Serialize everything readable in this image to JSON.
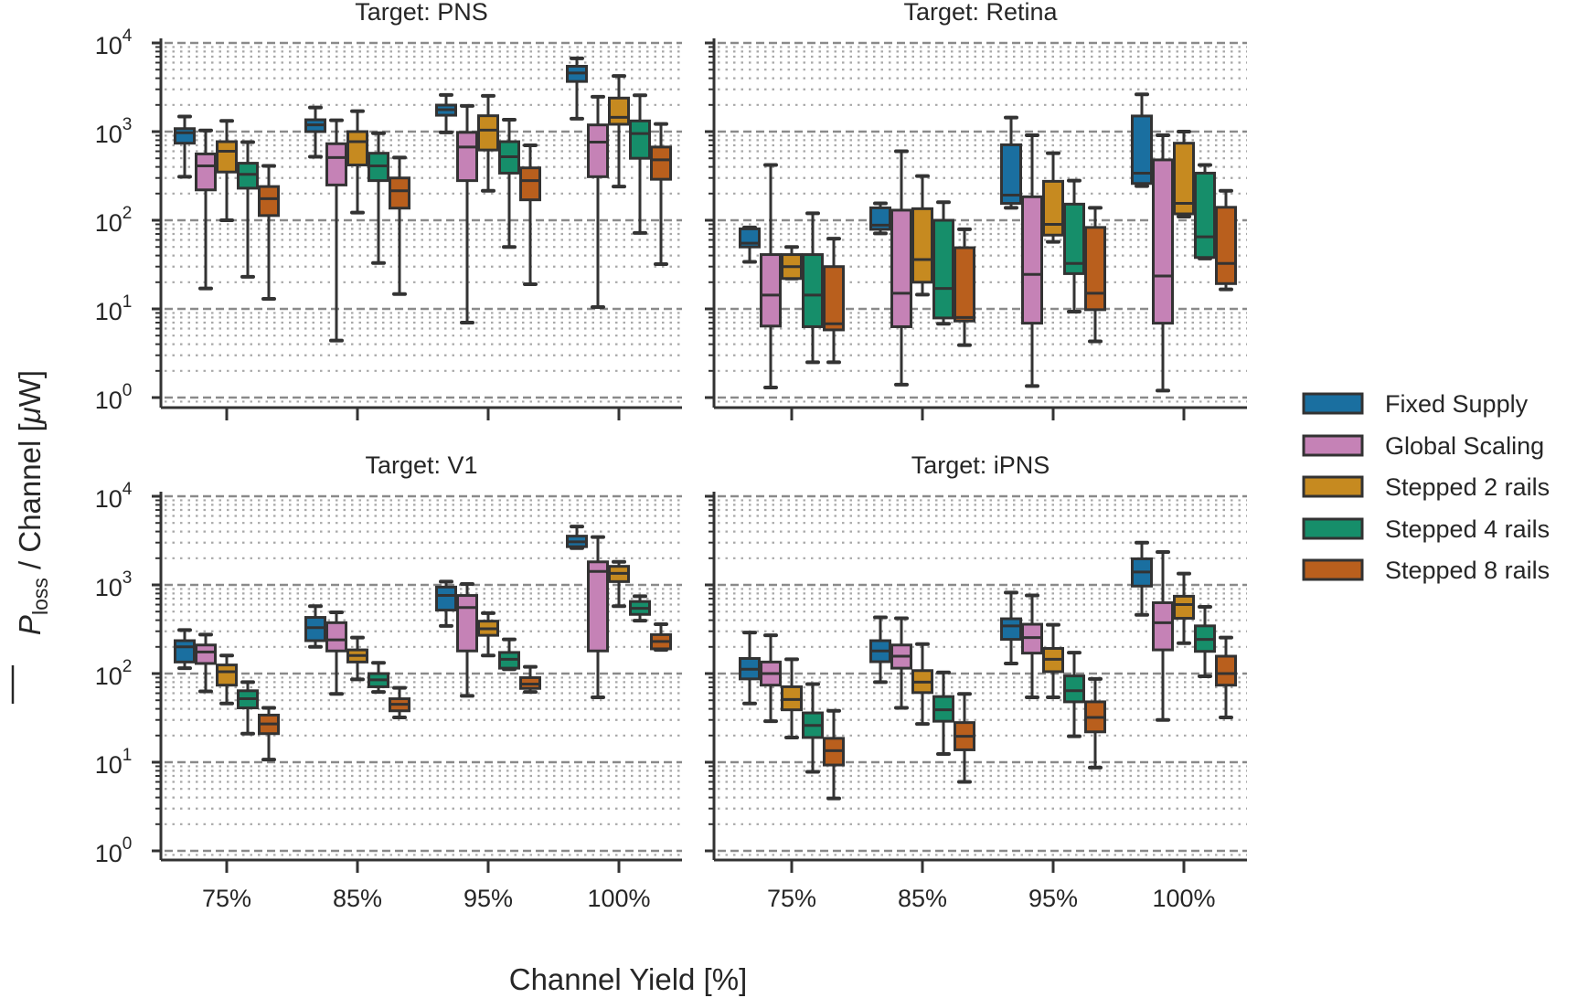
{
  "figure": {
    "xlabel": "Channel Yield [%]",
    "ylabel": {
      "symbol": "P",
      "subscript": "loss",
      "middle": " / Channel [",
      "unit_prefix": "μ",
      "unit_rest": "W]"
    },
    "yscale": "log",
    "ylim": [
      1,
      10000
    ],
    "yticks": [
      1,
      10,
      100,
      1000,
      10000
    ],
    "grid": {
      "major": "dashed",
      "minor": "dotted"
    },
    "legend_position": "right"
  },
  "legend": [
    {
      "label": "Fixed Supply",
      "color": "#1a6fa0"
    },
    {
      "label": "Global Scaling",
      "color": "#c582b6"
    },
    {
      "label": "Stepped 2 rails",
      "color": "#c68a20"
    },
    {
      "label": "Stepped 4 rails",
      "color": "#168e6a"
    },
    {
      "label": "Stepped 8 rails",
      "color": "#b95f1d"
    }
  ],
  "chart_data": [
    {
      "type": "box",
      "title": "Target: PNS",
      "categories": [
        "75%",
        "85%",
        "95%",
        "100%"
      ],
      "box_format": [
        "whisker_low",
        "q1",
        "median",
        "q3",
        "whisker_high"
      ],
      "series": [
        {
          "name": "Fixed Supply",
          "boxes": [
            [
              310,
              740,
              970,
              1080,
              1480
            ],
            [
              520,
              1000,
              1190,
              1360,
              1870
            ],
            [
              980,
              1530,
              1770,
              1990,
              2590
            ],
            [
              1400,
              3680,
              4580,
              5460,
              6700
            ]
          ]
        },
        {
          "name": "Global Scaling",
          "boxes": [
            [
              17,
              220,
              410,
              560,
              1030
            ],
            [
              4.4,
              250,
              510,
              730,
              1340
            ],
            [
              7,
              280,
              670,
              980,
              1950
            ],
            [
              10.5,
              310,
              760,
              1190,
              2470
            ]
          ]
        },
        {
          "name": "Stepped 2 rails",
          "boxes": [
            [
              100,
              350,
              600,
              770,
              1320
            ],
            [
              122,
              420,
              770,
              1000,
              1700
            ],
            [
              215,
              620,
              1040,
              1510,
              2530
            ],
            [
              240,
              1210,
              1450,
              2390,
              4240
            ]
          ]
        },
        {
          "name": "Stepped 4 rails",
          "boxes": [
            [
              23,
              230,
              330,
              440,
              760
            ],
            [
              33,
              280,
              410,
              570,
              960
            ],
            [
              50,
              340,
              520,
              770,
              1360
            ],
            [
              72,
              500,
              950,
              1320,
              2570
            ]
          ]
        },
        {
          "name": "Stepped 8 rails",
          "boxes": [
            [
              13,
              113,
              175,
              240,
              410
            ],
            [
              14.7,
              137,
              215,
              300,
              510
            ],
            [
              19,
              170,
              280,
              390,
              700
            ],
            [
              32,
              290,
              480,
              670,
              1220
            ]
          ]
        }
      ]
    },
    {
      "type": "box",
      "title": "Target: Retina",
      "categories": [
        "75%",
        "85%",
        "95%",
        "100%"
      ],
      "box_format": [
        "whisker_low",
        "q1",
        "median",
        "q3",
        "whisker_high"
      ],
      "series": [
        {
          "name": "Fixed Supply",
          "boxes": [
            [
              34,
              50,
              55,
              80,
              83
            ],
            [
              71,
              79,
              88,
              138,
              155
            ],
            [
              138,
              155,
              192,
              710,
              1440
            ],
            [
              243,
              260,
              340,
              1500,
              2630
            ]
          ]
        },
        {
          "name": "Global Scaling",
          "boxes": [
            [
              1.3,
              6.4,
              14.3,
              41,
              420
            ],
            [
              1.4,
              6.3,
              15,
              130,
              600
            ],
            [
              1.35,
              6.9,
              24.5,
              184,
              910
            ],
            [
              1.2,
              6.9,
              23.5,
              480,
              910
            ]
          ]
        },
        {
          "name": "Stepped 2 rails",
          "boxes": [
            [
              22,
              22,
              30,
              41,
              50
            ],
            [
              14.5,
              20,
              36,
              135,
              315
            ],
            [
              57,
              68,
              90,
              275,
              570
            ],
            [
              110,
              118,
              155,
              740,
              1000
            ]
          ]
        },
        {
          "name": "Stepped 4 rails",
          "boxes": [
            [
              2.5,
              6.3,
              14.3,
              41,
              120
            ],
            [
              6.8,
              7.9,
              17,
              100,
              160
            ],
            [
              9.3,
              25,
              32.6,
              152,
              280
            ],
            [
              37,
              38,
              65,
              340,
              420
            ]
          ]
        },
        {
          "name": "Stepped 8 rails",
          "boxes": [
            [
              2.5,
              5.8,
              6.8,
              30,
              62
            ],
            [
              3.9,
              7.3,
              8,
              49,
              79
            ],
            [
              4.3,
              9.8,
              15,
              83,
              138
            ],
            [
              16.6,
              19.3,
              32.6,
              140,
              215
            ]
          ]
        }
      ]
    },
    {
      "type": "box",
      "title": "Target: V1",
      "categories": [
        "75%",
        "85%",
        "95%",
        "100%"
      ],
      "box_format": [
        "whisker_low",
        "q1",
        "median",
        "q3",
        "whisker_high"
      ],
      "series": [
        {
          "name": "Fixed Supply",
          "boxes": [
            [
              115,
              135,
              200,
              235,
              310
            ],
            [
              200,
              235,
              330,
              430,
              575
            ],
            [
              345,
              520,
              760,
              945,
              1090
            ],
            [
              2600,
              2700,
              3060,
              3550,
              4550
            ]
          ]
        },
        {
          "name": "Global Scaling",
          "boxes": [
            [
              63,
              130,
              175,
              210,
              275
            ],
            [
              59,
              180,
              240,
              375,
              490
            ],
            [
              56,
              180,
              555,
              760,
              1025
            ],
            [
              54,
              180,
              1420,
              1820,
              3470
            ]
          ]
        },
        {
          "name": "Stepped 2 rails",
          "boxes": [
            [
              46,
              74,
              105,
              125,
              160
            ],
            [
              86,
              135,
              160,
              185,
              255
            ],
            [
              160,
              270,
              320,
              390,
              480
            ],
            [
              575,
              1090,
              1350,
              1620,
              1820
            ]
          ]
        },
        {
          "name": "Stepped 4 rails",
          "boxes": [
            [
              21,
              41,
              52,
              64,
              80
            ],
            [
              62,
              71,
              85,
              100,
              132
            ],
            [
              112,
              115,
              145,
              173,
              243
            ],
            [
              395,
              465,
              545,
              650,
              745
            ]
          ]
        },
        {
          "name": "Stepped 8 rails",
          "boxes": [
            [
              10.7,
              21,
              27,
              34,
              41
            ],
            [
              32,
              38,
              45,
              52,
              69
            ],
            [
              62,
              68,
              76,
              90,
              119
            ],
            [
              185,
              190,
              230,
              275,
              360
            ]
          ]
        }
      ]
    },
    {
      "type": "box",
      "title": "Target: iPNS",
      "categories": [
        "75%",
        "85%",
        "95%",
        "100%"
      ],
      "box_format": [
        "whisker_low",
        "q1",
        "median",
        "q3",
        "whisker_high"
      ],
      "series": [
        {
          "name": "Fixed Supply",
          "boxes": [
            [
              46,
              87,
              112,
              148,
              290
            ],
            [
              80,
              136,
              180,
              235,
              430
            ],
            [
              130,
              243,
              345,
              415,
              820
            ],
            [
              460,
              970,
              1400,
              1970,
              3000
            ]
          ]
        },
        {
          "name": "Global Scaling",
          "boxes": [
            [
              29,
              74,
              100,
              135,
              270
            ],
            [
              41,
              115,
              157,
              210,
              420
            ],
            [
              54,
              170,
              255,
              360,
              760
            ],
            [
              30,
              185,
              375,
              630,
              2350
            ]
          ]
        },
        {
          "name": "Stepped 2 rails",
          "boxes": [
            [
              19,
              39,
              51,
              71,
              145
            ],
            [
              27,
              61,
              80,
              108,
              215
            ],
            [
              54,
              105,
              145,
              192,
              355
            ],
            [
              220,
              420,
              600,
              745,
              1340
            ]
          ]
        },
        {
          "name": "Stepped 4 rails",
          "boxes": [
            [
              7.8,
              19,
              26,
              36,
              76
            ],
            [
              12.4,
              29,
              39,
              55,
              103
            ],
            [
              19.6,
              48,
              64,
              94,
              172
            ],
            [
              93,
              178,
              243,
              345,
              565
            ]
          ]
        },
        {
          "name": "Stepped 8 rails",
          "boxes": [
            [
              3.9,
              9.3,
              13.5,
              18.6,
              38
            ],
            [
              6,
              13.8,
              19.6,
              28,
              59
            ],
            [
              8.7,
              22,
              32,
              48,
              87
            ],
            [
              32,
              74,
              100,
              157,
              255
            ]
          ]
        }
      ]
    }
  ]
}
